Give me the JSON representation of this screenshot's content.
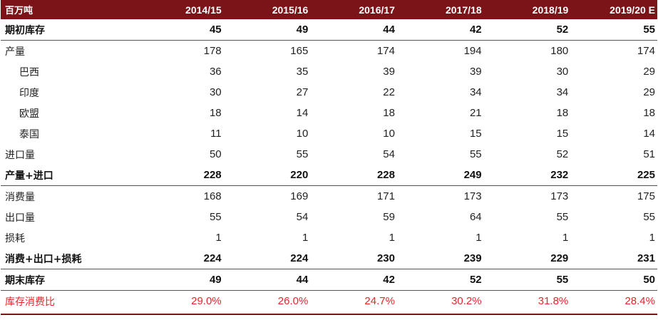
{
  "table": {
    "header": {
      "label": "百万吨",
      "columns": [
        "2014/15",
        "2015/16",
        "2016/17",
        "2017/18",
        "2018/19",
        "2019/20 E"
      ]
    },
    "rows": [
      {
        "label": "期初库存",
        "values": [
          "45",
          "49",
          "44",
          "42",
          "52",
          "55"
        ]
      },
      {
        "label": "产量",
        "values": [
          "178",
          "165",
          "174",
          "194",
          "180",
          "174"
        ]
      },
      {
        "label": "巴西",
        "values": [
          "36",
          "35",
          "39",
          "39",
          "30",
          "29"
        ]
      },
      {
        "label": "印度",
        "values": [
          "30",
          "27",
          "22",
          "34",
          "34",
          "29"
        ]
      },
      {
        "label": "欧盟",
        "values": [
          "18",
          "14",
          "18",
          "21",
          "18",
          "18"
        ]
      },
      {
        "label": "泰国",
        "values": [
          "11",
          "10",
          "10",
          "15",
          "15",
          "14"
        ]
      },
      {
        "label": "进口量",
        "values": [
          "50",
          "55",
          "54",
          "55",
          "52",
          "51"
        ]
      },
      {
        "label": "产量+进口",
        "values": [
          "228",
          "220",
          "228",
          "249",
          "232",
          "225"
        ]
      },
      {
        "label": "消费量",
        "values": [
          "168",
          "169",
          "171",
          "173",
          "173",
          "175"
        ]
      },
      {
        "label": "出口量",
        "values": [
          "55",
          "54",
          "59",
          "64",
          "55",
          "55"
        ]
      },
      {
        "label": "损耗",
        "values": [
          "1",
          "1",
          "1",
          "1",
          "1",
          "1"
        ]
      },
      {
        "label": "消费+出口+损耗",
        "values": [
          "224",
          "224",
          "230",
          "239",
          "229",
          "231"
        ]
      },
      {
        "label": "期末库存",
        "values": [
          "49",
          "44",
          "42",
          "52",
          "55",
          "50"
        ]
      },
      {
        "label": "库存消费比",
        "values": [
          "29.0%",
          "26.0%",
          "24.7%",
          "30.2%",
          "31.8%",
          "28.4%"
        ]
      }
    ]
  },
  "colors": {
    "header_bg": "#7a1418",
    "header_text": "#ffffff",
    "highlight_text": "#e8252a",
    "rule": "#7a1418"
  }
}
